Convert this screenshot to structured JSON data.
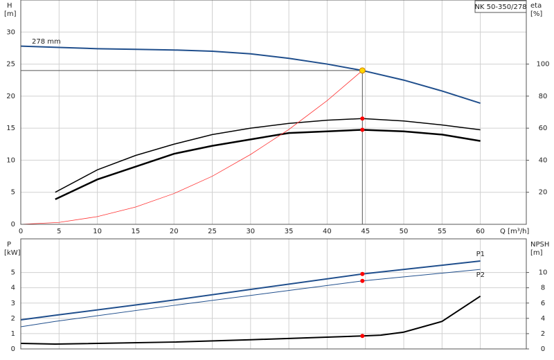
{
  "chart_data": [
    {
      "type": "line",
      "title": "NK 50-350/278",
      "xlabel": "Q [m³/h]",
      "ylabel": "H",
      "yunit": "[m]",
      "y2label": "eta",
      "y2unit": "[%]",
      "annotation": "278 mm",
      "grid": true,
      "xlim": [
        0,
        66
      ],
      "xticks": [
        0,
        5,
        10,
        15,
        20,
        25,
        30,
        35,
        40,
        45,
        50,
        55,
        60
      ],
      "ylim": [
        0,
        35
      ],
      "yticks": [
        0,
        5,
        10,
        15,
        20,
        25,
        30
      ],
      "y2lim": [
        0,
        140
      ],
      "y2ticks": [
        20,
        40,
        60,
        80,
        100
      ],
      "series": [
        {
          "color": "#1f4e8c",
          "x": [
            0,
            5,
            10,
            15,
            20,
            25,
            30,
            35,
            40,
            44.6,
            50,
            55,
            60
          ],
          "values": [
            27.8,
            27.6,
            27.4,
            27.3,
            27.2,
            27.0,
            26.6,
            25.9,
            25.0,
            24.0,
            22.5,
            20.8,
            18.9
          ]
        },
        {
          "color": "#000000",
          "axis": "y2",
          "x": [
            4.5,
            10,
            15,
            20,
            25,
            30,
            35,
            40,
            44.6,
            50,
            55,
            60
          ],
          "values": [
            20,
            34,
            43,
            50,
            56,
            60,
            63,
            65,
            66,
            64.5,
            62,
            59
          ]
        },
        {
          "color": "#000000",
          "axis": "y2",
          "x": [
            4.5,
            10,
            15,
            20,
            25,
            30,
            35,
            40,
            44.6,
            50,
            55,
            60
          ],
          "values": [
            15.6,
            28,
            36,
            44,
            49,
            53,
            57,
            58,
            59,
            58,
            56,
            52
          ]
        },
        {
          "color": "#ff3030",
          "x": [
            0,
            5,
            10,
            15,
            20,
            25,
            30,
            35,
            40,
            44.6
          ],
          "values": [
            0,
            0.3,
            1.2,
            2.7,
            4.8,
            7.5,
            10.9,
            14.8,
            19.3,
            24.0
          ]
        }
      ],
      "markers": [
        {
          "x": 44.6,
          "y": 24.0,
          "color": "#ffd700"
        },
        {
          "x": 44.6,
          "y": 66,
          "axis": "y2",
          "color": "#ff0000"
        },
        {
          "x": 44.6,
          "y": 59,
          "axis": "y2",
          "color": "#ff0000"
        }
      ]
    },
    {
      "type": "line",
      "ylabel": "P",
      "yunit": "[kW]",
      "y2label": "NPSH",
      "y2unit": "[m]",
      "grid": true,
      "xlim": [
        0,
        66
      ],
      "ylim": [
        0,
        7.2
      ],
      "yticks": [
        0,
        1,
        2,
        3,
        4,
        5
      ],
      "y2lim": [
        0,
        14.4
      ],
      "y2ticks": [
        0,
        2,
        4,
        6,
        8,
        10
      ],
      "series": [
        {
          "name": "P1",
          "color": "#1f4e8c",
          "x": [
            0,
            4.5,
            20,
            44.6,
            60
          ],
          "values": [
            1.9,
            2.2,
            3.2,
            4.9,
            5.75
          ]
        },
        {
          "name": "P2",
          "color": "#1f4e8c",
          "x": [
            0,
            4.5,
            20,
            44.6,
            60
          ],
          "values": [
            1.45,
            1.8,
            2.85,
            4.45,
            5.2
          ]
        },
        {
          "color": "#000000",
          "axis": "y2",
          "x": [
            0,
            4.5,
            20,
            30,
            44.6,
            47,
            50,
            55,
            60
          ],
          "values": [
            0.73,
            0.63,
            0.9,
            1.2,
            1.7,
            1.8,
            2.2,
            3.6,
            6.9
          ]
        }
      ],
      "markers": [
        {
          "x": 44.6,
          "y": 4.9,
          "color": "#ff0000"
        },
        {
          "x": 44.6,
          "y": 4.45,
          "color": "#ff0000"
        },
        {
          "x": 44.6,
          "y": 1.7,
          "axis": "y2",
          "color": "#ff0000"
        }
      ]
    }
  ]
}
